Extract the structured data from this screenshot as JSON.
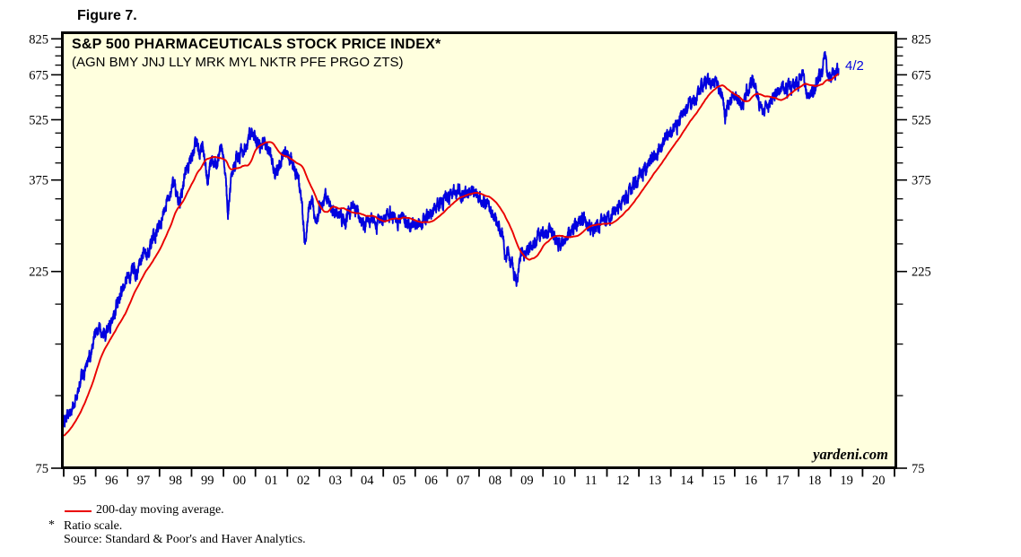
{
  "figure_label": "Figure 7.",
  "chart": {
    "title": "S&P 500 PHARMACEUTICALS STOCK PRICE INDEX*",
    "subtitle": "(AGN BMY JNJ LLY MRK MYL NKTR PFE PRGO ZTS)",
    "end_date_label": "4/2",
    "brand": "yardeni.com"
  },
  "footnotes": {
    "legend_label": "200-day moving average.",
    "star": "*",
    "ratio_note": "Ratio scale.",
    "source": "Source: Standard & Poor's and Haver Analytics."
  },
  "colors": {
    "plot_bg": "#ffffde",
    "axis": "#000000",
    "price_line": "#0202df",
    "ma_line": "#ea0000",
    "annotation": "#0202df",
    "text": "#000000"
  },
  "chart_data": {
    "type": "line",
    "title": "S&P 500 PHARMACEUTICALS STOCK PRICE INDEX*",
    "subtitle": "(AGN BMY JNJ LLY MRK MYL NKTR PFE PRGO ZTS)",
    "last_point": {
      "date_label": "4/2",
      "value": 700
    },
    "x_axis": {
      "unit": "year",
      "range": [
        1995,
        2021
      ],
      "labels": [
        "95",
        "96",
        "97",
        "98",
        "99",
        "00",
        "01",
        "02",
        "03",
        "04",
        "05",
        "06",
        "07",
        "08",
        "09",
        "10",
        "11",
        "12",
        "13",
        "14",
        "15",
        "16",
        "17",
        "18",
        "19",
        "20"
      ]
    },
    "y_axis": {
      "scale": "ratio (log)",
      "major_ticks": [
        825,
        675,
        525,
        375,
        225,
        75
      ],
      "minor_ticks_per_interval": 3,
      "sides": "both",
      "grid": false
    },
    "legend_position": "below-chart",
    "series": [
      {
        "name": "S&P 500 Pharmaceuticals stock price index (daily)",
        "color": "#0202df",
        "style": "jagged daily line",
        "keyframes": [
          [
            1995.0,
            98
          ],
          [
            1995.25,
            104
          ],
          [
            1995.5,
            118
          ],
          [
            1995.75,
            135
          ],
          [
            1996.0,
            158
          ],
          [
            1996.15,
            165
          ],
          [
            1996.3,
            156
          ],
          [
            1996.6,
            180
          ],
          [
            1996.85,
            205
          ],
          [
            1997.0,
            215
          ],
          [
            1997.15,
            228
          ],
          [
            1997.3,
            220
          ],
          [
            1997.5,
            252
          ],
          [
            1997.65,
            248
          ],
          [
            1997.8,
            268
          ],
          [
            1998.0,
            290
          ],
          [
            1998.2,
            330
          ],
          [
            1998.45,
            370
          ],
          [
            1998.6,
            330
          ],
          [
            1998.8,
            390
          ],
          [
            1999.0,
            420
          ],
          [
            1999.12,
            470
          ],
          [
            1999.25,
            440
          ],
          [
            1999.35,
            462
          ],
          [
            1999.5,
            368
          ],
          [
            1999.65,
            428
          ],
          [
            1999.8,
            405
          ],
          [
            1999.95,
            465
          ],
          [
            2000.05,
            395
          ],
          [
            2000.14,
            305
          ],
          [
            2000.25,
            385
          ],
          [
            2000.4,
            420
          ],
          [
            2000.6,
            445
          ],
          [
            2000.75,
            465
          ],
          [
            2000.92,
            497
          ],
          [
            2001.1,
            452
          ],
          [
            2001.25,
            465
          ],
          [
            2001.4,
            445
          ],
          [
            2001.55,
            408
          ],
          [
            2001.7,
            395
          ],
          [
            2001.85,
            430
          ],
          [
            2002.0,
            425
          ],
          [
            2002.15,
            415
          ],
          [
            2002.3,
            390
          ],
          [
            2002.45,
            330
          ],
          [
            2002.55,
            266
          ],
          [
            2002.67,
            320
          ],
          [
            2002.78,
            332
          ],
          [
            2002.9,
            298
          ],
          [
            2003.0,
            318
          ],
          [
            2003.2,
            342
          ],
          [
            2003.4,
            318
          ],
          [
            2003.6,
            312
          ],
          [
            2003.8,
            298
          ],
          [
            2004.0,
            322
          ],
          [
            2004.2,
            313
          ],
          [
            2004.4,
            289
          ],
          [
            2004.6,
            301
          ],
          [
            2004.8,
            293
          ],
          [
            2005.0,
            299
          ],
          [
            2005.2,
            312
          ],
          [
            2005.4,
            299
          ],
          [
            2005.6,
            309
          ],
          [
            2005.85,
            287
          ],
          [
            2006.0,
            293
          ],
          [
            2006.2,
            297
          ],
          [
            2006.4,
            306
          ],
          [
            2006.6,
            318
          ],
          [
            2006.8,
            331
          ],
          [
            2007.0,
            340
          ],
          [
            2007.2,
            350
          ],
          [
            2007.35,
            357
          ],
          [
            2007.5,
            338
          ],
          [
            2007.7,
            351
          ],
          [
            2007.9,
            344
          ],
          [
            2008.1,
            332
          ],
          [
            2008.3,
            322
          ],
          [
            2008.5,
            305
          ],
          [
            2008.65,
            290
          ],
          [
            2008.75,
            278
          ],
          [
            2008.82,
            237
          ],
          [
            2008.88,
            258
          ],
          [
            2008.95,
            241
          ],
          [
            2009.05,
            231
          ],
          [
            2009.17,
            216
          ],
          [
            2009.3,
            243
          ],
          [
            2009.5,
            252
          ],
          [
            2009.7,
            263
          ],
          [
            2009.9,
            276
          ],
          [
            2010.1,
            279
          ],
          [
            2010.25,
            284
          ],
          [
            2010.4,
            266
          ],
          [
            2010.55,
            258
          ],
          [
            2010.7,
            271
          ],
          [
            2010.9,
            286
          ],
          [
            2011.1,
            293
          ],
          [
            2011.3,
            300
          ],
          [
            2011.45,
            291
          ],
          [
            2011.6,
            282
          ],
          [
            2011.75,
            296
          ],
          [
            2011.9,
            307
          ],
          [
            2012.0,
            300
          ],
          [
            2012.2,
            313
          ],
          [
            2012.4,
            326
          ],
          [
            2012.6,
            336
          ],
          [
            2012.8,
            355
          ],
          [
            2013.0,
            380
          ],
          [
            2013.2,
            402
          ],
          [
            2013.4,
            421
          ],
          [
            2013.6,
            441
          ],
          [
            2013.8,
            462
          ],
          [
            2014.0,
            490
          ],
          [
            2014.2,
            512
          ],
          [
            2014.4,
            546
          ],
          [
            2014.6,
            571
          ],
          [
            2014.8,
            606
          ],
          [
            2014.95,
            634
          ],
          [
            2015.1,
            641
          ],
          [
            2015.18,
            652
          ],
          [
            2015.3,
            632
          ],
          [
            2015.45,
            641
          ],
          [
            2015.6,
            610
          ],
          [
            2015.7,
            538
          ],
          [
            2015.8,
            585
          ],
          [
            2015.95,
            605
          ],
          [
            2016.1,
            592
          ],
          [
            2016.22,
            562
          ],
          [
            2016.35,
            605
          ],
          [
            2016.5,
            645
          ],
          [
            2016.57,
            653
          ],
          [
            2016.7,
            615
          ],
          [
            2016.82,
            565
          ],
          [
            2016.95,
            555
          ],
          [
            2017.05,
            572
          ],
          [
            2017.2,
            595
          ],
          [
            2017.35,
            615
          ],
          [
            2017.5,
            638
          ],
          [
            2017.62,
            620
          ],
          [
            2017.75,
            628
          ],
          [
            2017.9,
            640
          ],
          [
            2018.0,
            655
          ],
          [
            2018.1,
            685
          ],
          [
            2018.2,
            640
          ],
          [
            2018.28,
            602
          ],
          [
            2018.38,
            615
          ],
          [
            2018.5,
            630
          ],
          [
            2018.62,
            660
          ],
          [
            2018.72,
            695
          ],
          [
            2018.82,
            725
          ],
          [
            2018.9,
            690
          ],
          [
            2018.96,
            648
          ],
          [
            2019.03,
            665
          ],
          [
            2019.1,
            678
          ],
          [
            2019.18,
            692
          ],
          [
            2019.25,
            700
          ]
        ],
        "ma_warmup_keyframes": [
          [
            1993.5,
            80
          ],
          [
            1994.0,
            83
          ],
          [
            1994.3,
            85
          ],
          [
            1994.6,
            88
          ],
          [
            1994.8,
            92
          ]
        ]
      },
      {
        "name": "200-day moving average",
        "color": "#ea0000",
        "derived_from": "trailing 200-trading-day mean of the daily index series"
      }
    ]
  }
}
